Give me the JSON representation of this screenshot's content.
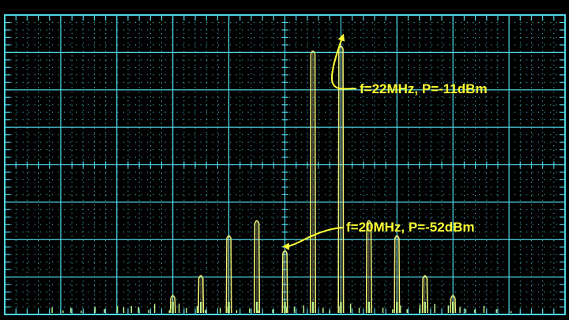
{
  "colors": {
    "background": "#000000",
    "grid": "#4fd6e6",
    "trace": "#eef07a",
    "trace_bright": "#f4f6b0",
    "annotation": "#ffff33",
    "floor_spikes": "#b9f28c"
  },
  "chart_data": {
    "type": "line",
    "title": "",
    "xlabel": "",
    "ylabel": "",
    "grid": true,
    "divisions": {
      "x": 10,
      "y": 8
    },
    "minor_ticks_per_division": 5,
    "x_unit": "MHz",
    "y_unit": "dBm",
    "xlim": [
      10,
      30
    ],
    "ylim": [
      -65,
      -5
    ],
    "series": [
      {
        "peaks": [
          {
            "x": 16.0,
            "y": -61
          },
          {
            "x": 17.0,
            "y": -57
          },
          {
            "x": 18.0,
            "y": -49
          },
          {
            "x": 19.0,
            "y": -46
          },
          {
            "x": 20.0,
            "y": -52
          },
          {
            "x": 21.0,
            "y": -12
          },
          {
            "x": 22.0,
            "y": -11
          },
          {
            "x": 23.0,
            "y": -46
          },
          {
            "x": 24.0,
            "y": -49
          },
          {
            "x": 25.0,
            "y": -57
          },
          {
            "x": 26.0,
            "y": -61
          }
        ]
      }
    ],
    "annotations": [
      {
        "text": "f=22MHz, P=-11dBm",
        "x": 22.0,
        "y": -11
      },
      {
        "text": "f=20MHz, P=-52dBm",
        "x": 20.0,
        "y": -52
      }
    ]
  }
}
